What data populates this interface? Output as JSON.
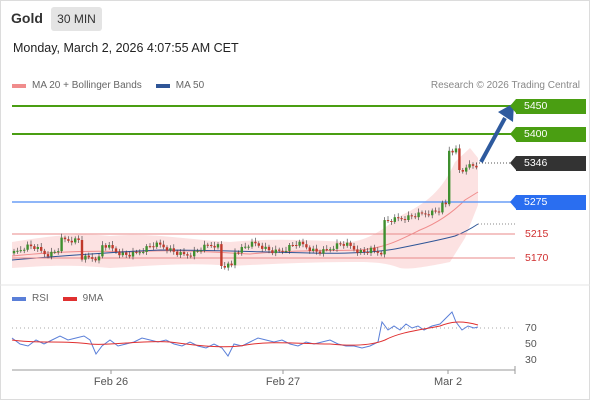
{
  "header": {
    "title": "Gold",
    "timeframe": "30 MIN"
  },
  "datetime": "Monday, March 2, 2026 4:07:55 AM CET",
  "legend": {
    "items": [
      {
        "label": "MA 20 + Bollinger Bands",
        "color": "#f08c8c"
      },
      {
        "label": "MA 50",
        "color": "#2f5597"
      }
    ],
    "credit": "Research © 2026 Trading Central"
  },
  "levels": [
    {
      "label": "5450",
      "type": "resistance",
      "color": "#4a9e12",
      "style": "tag"
    },
    {
      "label": "5400",
      "type": "resistance",
      "color": "#4a9e12",
      "style": "tag"
    },
    {
      "label": "5346",
      "type": "last-price",
      "color": "#333333",
      "style": "tag"
    },
    {
      "label": "5275",
      "type": "pivot",
      "color": "#2a6ef0",
      "style": "tag"
    },
    {
      "label": "5215",
      "type": "support",
      "color": "#d03030",
      "style": "text"
    },
    {
      "label": "5170",
      "type": "support",
      "color": "#d03030",
      "style": "text"
    }
  ],
  "rsi_legend": [
    {
      "label": "RSI",
      "color": "#5a7fd8"
    },
    {
      "label": "9MA",
      "color": "#e03030"
    }
  ],
  "rsi_ticks": [
    "70",
    "50",
    "30"
  ],
  "x_axis": {
    "ticks": [
      "Feb 26",
      "Feb 27",
      "Mar 2"
    ]
  },
  "colors": {
    "bull": "#3f8f2f",
    "bear": "#c0392b",
    "band": "#fbd8d8",
    "arrow": "#2e5a9e"
  }
}
